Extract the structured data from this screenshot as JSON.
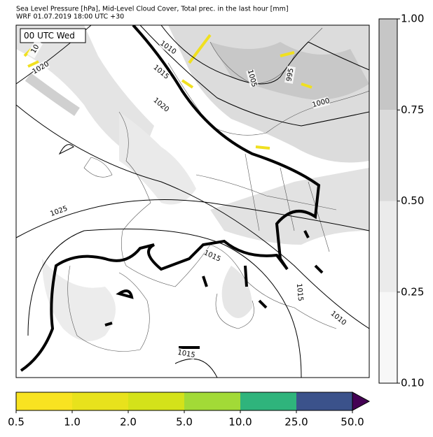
{
  "header": {
    "title_line1": "Sea Level Pressure [hPa], Mid-Level Cloud Cover, Total prec. in the last hour [mm]",
    "title_line2": "WRF 01.07.2019 18:00 UTC +30"
  },
  "map": {
    "time_label": "00 UTC Wed",
    "contour_labels": [
      "10",
      "1010",
      "1020",
      "1015",
      "1020",
      "1005",
      "995",
      "1000",
      "1025",
      "1015",
      "1015",
      "1010",
      "1015"
    ]
  },
  "color_scales": {
    "cloud_cover": {
      "ticks": [
        {
          "value": 0.1,
          "label": "0.10"
        },
        0.25,
        {
          "value": 0.5,
          "label": "0.50"
        },
        0.75,
        {
          "value": 1,
          "label": "1.00"
        }
      ],
      "colors": [
        "#f7f7f7",
        "#ebebeb",
        "#dadada",
        "#c6c6c6"
      ]
    },
    "precipitation": {
      "ticks": [
        0.5,
        {
          "value": 1,
          "label": "1.0"
        },
        {
          "value": 2,
          "label": "2.0"
        },
        {
          "value": 5,
          "label": "5.0"
        },
        {
          "value": 10,
          "label": "10.0"
        },
        {
          "value": 25,
          "label": "25.0"
        },
        {
          "value": 50,
          "label": "50.0"
        }
      ],
      "colors": [
        "#f8e321",
        "#e8e21c",
        "#d4e21a",
        "#a2da37",
        "#2fb47c",
        "#3b528b"
      ],
      "extend_color": "#440154"
    }
  }
}
